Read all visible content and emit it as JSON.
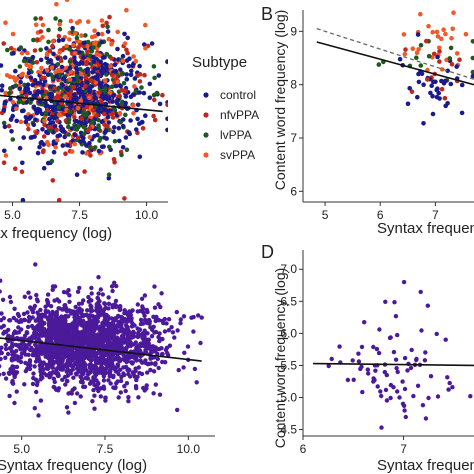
{
  "legend": {
    "title": "Subtype",
    "items": [
      {
        "label": "control",
        "color": "#1a1a8c"
      },
      {
        "label": "nfvPPA",
        "color": "#c0281e"
      },
      {
        "label": "lvPPA",
        "color": "#1e5a1e"
      },
      {
        "label": "svPPA",
        "color": "#f05a28"
      }
    ]
  },
  "chart_data": [
    {
      "panel": "A",
      "type": "scatter",
      "letter": "",
      "xlabel": "Syntax frequency (log)",
      "ylabel": "",
      "xlim": [
        3.6,
        10.8
      ],
      "ylim": [
        4.8,
        10.4
      ],
      "xticks": [
        5.0,
        7.5,
        10.0
      ],
      "xtick_labels": [
        "5.0",
        "7.5",
        "10.0"
      ],
      "yticks": [],
      "grid": false,
      "legend": "right",
      "series": [
        {
          "name": "control",
          "color": "#1a1a8c",
          "n": 600,
          "xmean": 7.4,
          "xsd": 1.3,
          "ymean": 7.6,
          "ysd": 0.75
        },
        {
          "name": "nfvPPA",
          "color": "#c0281e",
          "n": 230,
          "xmean": 7.4,
          "xsd": 1.3,
          "ymean": 7.6,
          "ysd": 0.9
        },
        {
          "name": "lvPPA",
          "color": "#1e5a1e",
          "n": 230,
          "xmean": 7.4,
          "xsd": 1.3,
          "ymean": 7.9,
          "ysd": 0.9
        },
        {
          "name": "svPPA",
          "color": "#f05a28",
          "n": 230,
          "xmean": 7.4,
          "xsd": 1.3,
          "ymean": 8.2,
          "ysd": 0.9
        }
      ],
      "fit_lines": [
        {
          "x": [
            3.6,
            10.6
          ],
          "y": [
            7.75,
            7.25
          ],
          "color": "#111111",
          "dashed": false
        }
      ]
    },
    {
      "panel": "B",
      "type": "scatter",
      "letter": "B",
      "xlabel": "Syntax frequency (log)",
      "ylabel": "Content word frequency (log)",
      "xlim": [
        4.6,
        7.7
      ],
      "ylim": [
        5.8,
        9.4
      ],
      "xticks": [
        5,
        6,
        7
      ],
      "xtick_labels": [
        "5",
        "6",
        "7"
      ],
      "yticks": [
        6,
        7,
        8,
        9
      ],
      "ytick_labels": [
        "6",
        "7",
        "8",
        "9"
      ],
      "grid": false,
      "series": [
        {
          "name": "control",
          "color": "#1a1a8c",
          "n": 40,
          "xmean": 7.0,
          "xsd": 0.35,
          "ymean": 8.0,
          "ysd": 0.25
        },
        {
          "name": "nfvPPA",
          "color": "#c0281e",
          "n": 14,
          "xmean": 6.9,
          "xsd": 0.4,
          "ymean": 8.3,
          "ysd": 0.35
        },
        {
          "name": "lvPPA",
          "color": "#1e5a1e",
          "n": 14,
          "xmean": 6.9,
          "xsd": 0.4,
          "ymean": 8.5,
          "ysd": 0.3
        },
        {
          "name": "svPPA",
          "color": "#f05a28",
          "n": 26,
          "xmean": 7.0,
          "xsd": 0.35,
          "ymean": 8.85,
          "ysd": 0.25
        }
      ],
      "fit_lines": [
        {
          "x": [
            4.85,
            7.7
          ],
          "y": [
            8.8,
            8.0
          ],
          "color": "#111111",
          "dashed": false
        },
        {
          "x": [
            4.85,
            7.7
          ],
          "y": [
            9.05,
            8.1
          ],
          "color": "#666666",
          "dashed": true
        }
      ]
    },
    {
      "panel": "C",
      "type": "scatter",
      "letter": "",
      "xlabel": "Syntax frequency (log)",
      "ylabel": "",
      "xlim": [
        3.6,
        10.8
      ],
      "ylim": [
        4.6,
        8.2
      ],
      "xticks": [
        5.0,
        7.5,
        10.0
      ],
      "xtick_labels": [
        "5.0",
        "7.5",
        "10.0"
      ],
      "yticks": [],
      "grid": false,
      "series": [
        {
          "name": "",
          "color": "#4b1a9a",
          "n": 1900,
          "xmean": 6.8,
          "xsd": 1.2,
          "ymean": 6.4,
          "ysd": 0.42
        }
      ],
      "fit_lines": [
        {
          "x": [
            3.6,
            10.4
          ],
          "y": [
            6.55,
            6.05
          ],
          "color": "#111111",
          "dashed": false
        }
      ]
    },
    {
      "panel": "D",
      "type": "scatter",
      "letter": "D",
      "xlabel": "Syntax frequency (log)",
      "ylabel": "Content word frequency (log)",
      "xlim": [
        6.0,
        7.7
      ],
      "ylim": [
        4.4,
        7.3
      ],
      "xticks": [
        6,
        7
      ],
      "xtick_labels": [
        "6",
        "7"
      ],
      "yticks": [
        4.5,
        5.0,
        5.5,
        6.0,
        6.5,
        7.0
      ],
      "ytick_labels": [
        "4.5",
        "5.0",
        "5.5",
        "6.0",
        "6.5",
        "7.0"
      ],
      "grid": false,
      "series": [
        {
          "name": "",
          "color": "#4b1a9a",
          "n": 85,
          "xmean": 6.95,
          "xsd": 0.35,
          "ymean": 5.55,
          "ysd": 0.45
        }
      ],
      "fit_lines": [
        {
          "x": [
            6.1,
            7.7
          ],
          "y": [
            5.53,
            5.5
          ],
          "color": "#111111",
          "dashed": false
        }
      ]
    }
  ]
}
